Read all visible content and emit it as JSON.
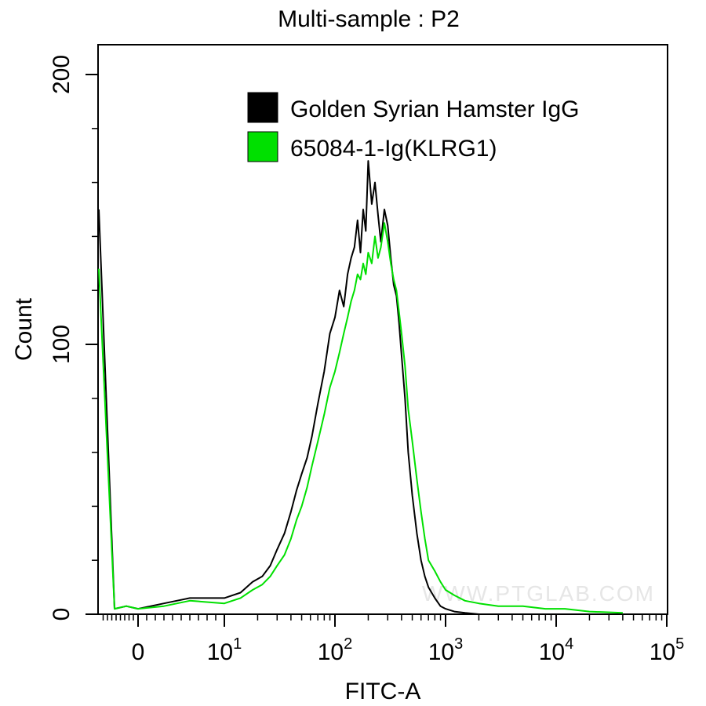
{
  "chart_data": {
    "type": "line",
    "subtype": "flow-cytometry-histogram",
    "title": "Multi-sample : P2",
    "xlabel": "FITC-A",
    "ylabel": "Count",
    "x_scale": "biexponential",
    "xlim": [
      -20,
      100000
    ],
    "ylim": [
      0,
      210
    ],
    "x_ticks": [
      {
        "value": 0,
        "base": "0",
        "exp": ""
      },
      {
        "value": 10,
        "base": "10",
        "exp": "1"
      },
      {
        "value": 100,
        "base": "10",
        "exp": "2"
      },
      {
        "value": 1000,
        "base": "10",
        "exp": "3"
      },
      {
        "value": 10000,
        "base": "10",
        "exp": "4"
      },
      {
        "value": 100000,
        "base": "10",
        "exp": "5"
      }
    ],
    "y_ticks": [
      0,
      100,
      200
    ],
    "y_minor_ticks": [
      20,
      40,
      60,
      80,
      120,
      140,
      160,
      180
    ],
    "grid": false,
    "legend": {
      "position": "top-right"
    },
    "watermark": "WWW.PTGLAB.COM",
    "series": [
      {
        "name": "Golden Syrian Hamster IgG",
        "color": "#000000",
        "x": [
          -20,
          -12,
          -6,
          0,
          3,
          6,
          10,
          14,
          18,
          22,
          26,
          30,
          35,
          40,
          45,
          50,
          56,
          62,
          70,
          80,
          90,
          100,
          110,
          120,
          130,
          140,
          150,
          160,
          170,
          180,
          190,
          200,
          215,
          230,
          245,
          260,
          280,
          300,
          320,
          340,
          360,
          380,
          400,
          430,
          460,
          500,
          550,
          600,
          650,
          700,
          800,
          900,
          1000,
          1200,
          1500,
          2000,
          3000,
          5000,
          8000
        ],
        "y": [
          150,
          2,
          3,
          2,
          4,
          6,
          6,
          8,
          12,
          14,
          18,
          24,
          30,
          38,
          46,
          52,
          58,
          66,
          78,
          90,
          104,
          110,
          120,
          114,
          126,
          132,
          136,
          146,
          134,
          150,
          142,
          168,
          152,
          160,
          148,
          138,
          150,
          144,
          132,
          122,
          118,
          108,
          96,
          80,
          60,
          44,
          30,
          20,
          14,
          10,
          6,
          3,
          2,
          1,
          0.5,
          0,
          0,
          0,
          0
        ]
      },
      {
        "name": "65084-1-Ig(KLRG1)",
        "color": "#00e000",
        "x": [
          -20,
          -12,
          -6,
          0,
          3,
          6,
          10,
          14,
          18,
          22,
          26,
          30,
          35,
          40,
          45,
          50,
          56,
          62,
          70,
          80,
          90,
          100,
          110,
          120,
          130,
          140,
          150,
          160,
          170,
          180,
          190,
          200,
          215,
          230,
          245,
          260,
          280,
          300,
          320,
          340,
          360,
          380,
          400,
          430,
          460,
          500,
          550,
          600,
          650,
          700,
          800,
          900,
          1000,
          1200,
          1500,
          2000,
          3000,
          5000,
          8000,
          12000,
          20000,
          40000
        ],
        "y": [
          128,
          2,
          3,
          2,
          3,
          5,
          4,
          6,
          9,
          11,
          14,
          18,
          22,
          28,
          35,
          40,
          47,
          55,
          64,
          74,
          84,
          90,
          97,
          104,
          110,
          116,
          120,
          126,
          124,
          130,
          126,
          134,
          130,
          140,
          132,
          136,
          145,
          138,
          130,
          124,
          120,
          112,
          104,
          92,
          76,
          64,
          50,
          38,
          28,
          20,
          16,
          12,
          9,
          7,
          5,
          4,
          3,
          3,
          2,
          2,
          1,
          0.5
        ]
      }
    ]
  }
}
